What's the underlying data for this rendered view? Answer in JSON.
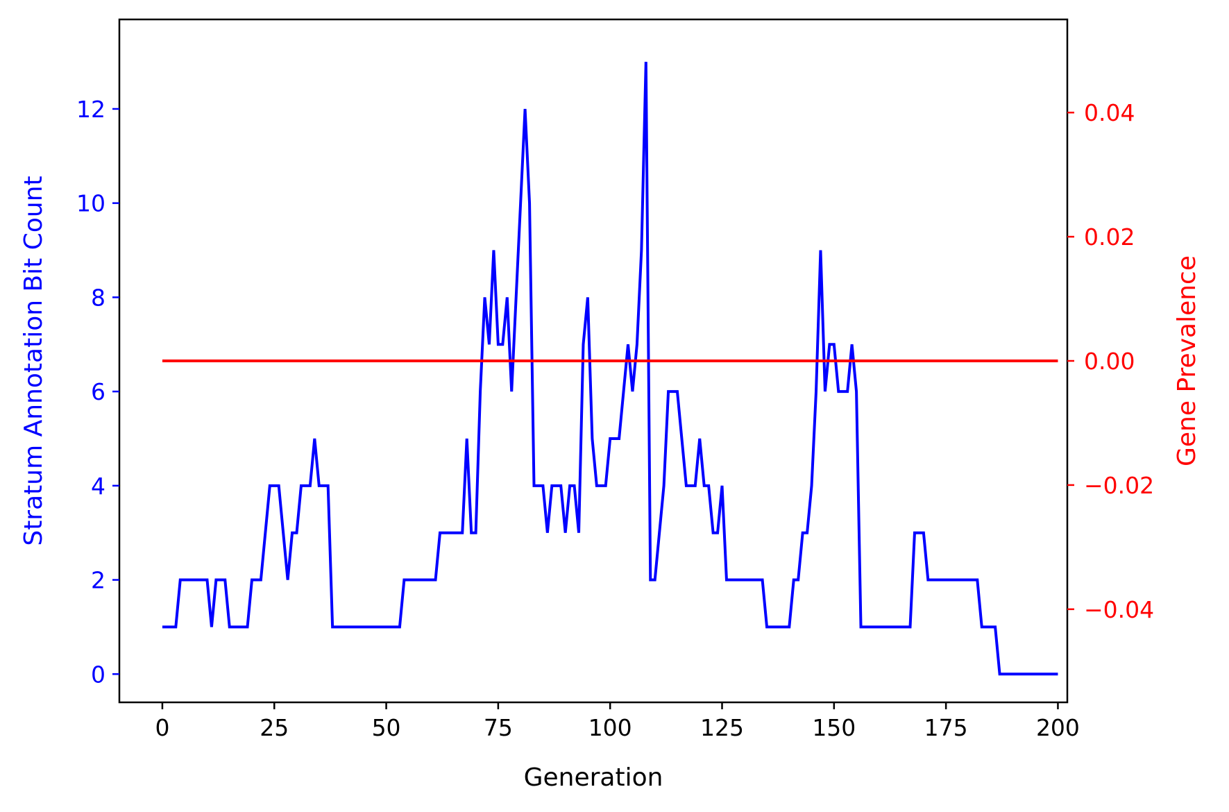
{
  "chart_data": {
    "type": "line",
    "xlabel": "Generation",
    "ylabel_left": "Stratum Annotation Bit Count",
    "ylabel_right": "Gene Prevalence",
    "xlim": [
      -9.6,
      202.1
    ],
    "ylim_left": [
      -0.6,
      13.9
    ],
    "ylim_right": [
      -0.055,
      0.055
    ],
    "x_ticks": [
      0,
      25,
      50,
      75,
      100,
      125,
      150,
      175,
      200
    ],
    "x_tick_labels": [
      "0",
      "25",
      "50",
      "75",
      "100",
      "125",
      "150",
      "175",
      "200"
    ],
    "y_ticks_left": [
      0,
      2,
      4,
      6,
      8,
      10,
      12
    ],
    "y_tick_labels_left": [
      "0",
      "2",
      "4",
      "6",
      "8",
      "10",
      "12"
    ],
    "y_ticks_right": [
      -0.04,
      -0.02,
      0.0,
      0.02,
      0.04
    ],
    "y_tick_labels_right": [
      "−0.04",
      "−0.02",
      "0.00",
      "0.02",
      "0.04"
    ],
    "grid": false,
    "colors": {
      "left": "#0000ff",
      "right": "#ff0000"
    },
    "series": [
      {
        "axis": "left",
        "color": "#0000ff",
        "x": [
          0,
          1,
          2,
          3,
          4,
          5,
          6,
          7,
          8,
          9,
          10,
          11,
          12,
          13,
          14,
          15,
          16,
          17,
          18,
          19,
          20,
          21,
          22,
          23,
          24,
          25,
          26,
          27,
          28,
          29,
          30,
          31,
          32,
          33,
          34,
          35,
          36,
          37,
          38,
          39,
          40,
          41,
          42,
          43,
          44,
          45,
          46,
          47,
          48,
          49,
          50,
          51,
          52,
          53,
          54,
          55,
          56,
          57,
          58,
          59,
          60,
          61,
          62,
          63,
          64,
          65,
          66,
          67,
          68,
          69,
          70,
          71,
          72,
          73,
          74,
          75,
          76,
          77,
          78,
          79,
          80,
          81,
          82,
          83,
          84,
          85,
          86,
          87,
          88,
          89,
          90,
          91,
          92,
          93,
          94,
          95,
          96,
          97,
          98,
          99,
          100,
          101,
          102,
          103,
          104,
          105,
          106,
          107,
          108,
          109,
          110,
          111,
          112,
          113,
          114,
          115,
          116,
          117,
          118,
          119,
          120,
          121,
          122,
          123,
          124,
          125,
          126,
          127,
          128,
          129,
          130,
          131,
          132,
          133,
          134,
          135,
          136,
          137,
          138,
          139,
          140,
          141,
          142,
          143,
          144,
          145,
          146,
          147,
          148,
          149,
          150,
          151,
          152,
          153,
          154,
          155,
          156,
          157,
          158,
          159,
          160,
          161,
          162,
          163,
          164,
          165,
          166,
          167,
          168,
          169,
          170,
          171,
          172,
          173,
          174,
          175,
          176,
          177,
          178,
          179,
          180,
          181,
          182,
          183,
          184,
          185,
          186,
          187,
          188,
          189,
          190,
          191,
          192,
          193,
          194,
          195,
          196,
          197,
          198,
          199,
          200
        ],
        "y": [
          1,
          1,
          1,
          1,
          2,
          2,
          2,
          2,
          2,
          2,
          2,
          1,
          2,
          2,
          2,
          1,
          1,
          1,
          1,
          1,
          2,
          2,
          2,
          3,
          4,
          4,
          4,
          3,
          2,
          3,
          3,
          4,
          4,
          4,
          5,
          4,
          4,
          4,
          1,
          1,
          1,
          1,
          1,
          1,
          1,
          1,
          1,
          1,
          1,
          1,
          1,
          1,
          1,
          1,
          2,
          2,
          2,
          2,
          2,
          2,
          2,
          2,
          3,
          3,
          3,
          3,
          3,
          3,
          5,
          3,
          3,
          6,
          8,
          7,
          9,
          7,
          7,
          8,
          6,
          8,
          10,
          12,
          10,
          4,
          4,
          4,
          3,
          4,
          4,
          4,
          3,
          4,
          4,
          3,
          7,
          8,
          5,
          4,
          4,
          4,
          5,
          5,
          5,
          6,
          7,
          6,
          7,
          9,
          13,
          2,
          2,
          3,
          4,
          6,
          6,
          6,
          5,
          4,
          4,
          4,
          5,
          4,
          4,
          3,
          3,
          4,
          2,
          2,
          2,
          2,
          2,
          2,
          2,
          2,
          2,
          1,
          1,
          1,
          1,
          1,
          1,
          2,
          2,
          3,
          3,
          4,
          6,
          9,
          6,
          7,
          7,
          6,
          6,
          6,
          7,
          6,
          1,
          1,
          1,
          1,
          1,
          1,
          1,
          1,
          1,
          1,
          1,
          1,
          3,
          3,
          3,
          2,
          2,
          2,
          2,
          2,
          2,
          2,
          2,
          2,
          2,
          2,
          2,
          1,
          1,
          1,
          1,
          0,
          0,
          0,
          0,
          0,
          0,
          0,
          0,
          0,
          0,
          0,
          0,
          0,
          0
        ]
      },
      {
        "axis": "right",
        "color": "#ff0000",
        "x": [
          0,
          200
        ],
        "y": [
          0.0,
          0.0
        ]
      }
    ]
  }
}
